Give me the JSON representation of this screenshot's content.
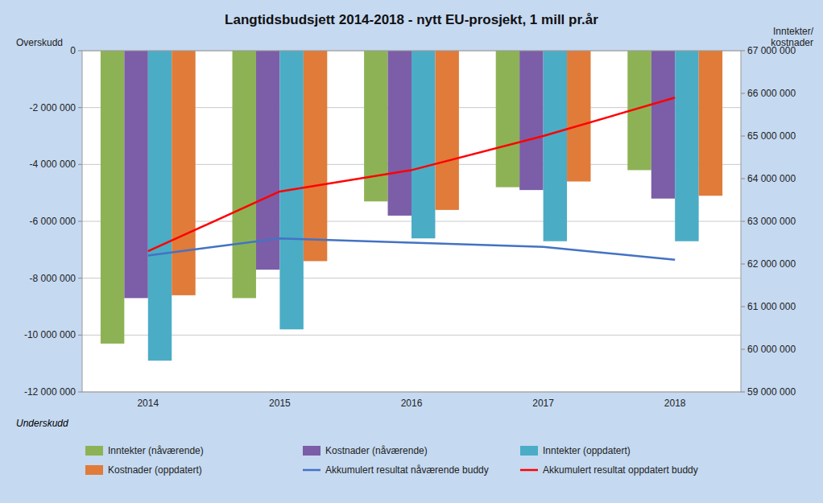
{
  "chart_data": {
    "type": "bar",
    "title": "Langtidsbudsjett 2014-2018 - nytt EU-prosjekt, 1 mill pr.år",
    "y_label": "Overskudd",
    "y2_label": "Inntekter/\nkostnader",
    "annotations": [
      "Underskudd"
    ],
    "categories": [
      "2014",
      "2015",
      "2016",
      "2017",
      "2018"
    ],
    "series": [
      {
        "name": "Inntekter (nåværende)",
        "type": "bar",
        "color": "#8DB255",
        "values": [
          -10300000,
          -8700000,
          -5300000,
          -4800000,
          -4200000
        ]
      },
      {
        "name": "Kostnader (nåværende)",
        "type": "bar",
        "color": "#7B5EA7",
        "values": [
          -8700000,
          -7700000,
          -5800000,
          -4900000,
          -5200000
        ]
      },
      {
        "name": "Inntekter (oppdatert)",
        "type": "bar",
        "color": "#4BACC6",
        "values": [
          -10900000,
          -9800000,
          -6600000,
          -6700000,
          -6700000
        ]
      },
      {
        "name": "Kostnader (oppdatert)",
        "type": "bar",
        "color": "#E07B39",
        "values": [
          -8600000,
          -7400000,
          -5600000,
          -4600000,
          -5100000
        ]
      },
      {
        "name": "Akkumulert resultat nåværende buddy",
        "type": "line",
        "axis": "y2",
        "color": "#4472C4",
        "values": [
          62200000,
          62600000,
          62500000,
          62400000,
          62100000
        ]
      },
      {
        "name": "Akkumulert resultat oppdatert buddy",
        "type": "line",
        "axis": "y2",
        "color": "#FF0000",
        "values": [
          62300000,
          63700000,
          64200000,
          65000000,
          65900000
        ]
      }
    ],
    "ylim": [
      -12000000,
      0
    ],
    "yticks": [
      {
        "value": -12000000,
        "label": "-12 000 000"
      },
      {
        "value": -10000000,
        "label": "-10 000 000"
      },
      {
        "value": -8000000,
        "label": "-8 000 000"
      },
      {
        "value": -6000000,
        "label": "-6 000 000"
      },
      {
        "value": -4000000,
        "label": "-4 000 000"
      },
      {
        "value": -2000000,
        "label": "-2 000 000"
      },
      0
    ],
    "y2lim": [
      59000000,
      67000000
    ],
    "y2ticks": [
      {
        "value": 59000000,
        "label": "59 000 000"
      },
      {
        "value": 60000000,
        "label": "60 000 000"
      },
      {
        "value": 61000000,
        "label": "61 000 000"
      },
      {
        "value": 62000000,
        "label": "62 000 000"
      },
      {
        "value": 63000000,
        "label": "63 000 000"
      },
      {
        "value": 64000000,
        "label": "64 000 000"
      },
      {
        "value": 65000000,
        "label": "65 000 000"
      },
      {
        "value": 66000000,
        "label": "66 000 000"
      },
      {
        "value": 67000000,
        "label": "67 000 000"
      }
    ],
    "grid": true,
    "legend": "bottom"
  }
}
